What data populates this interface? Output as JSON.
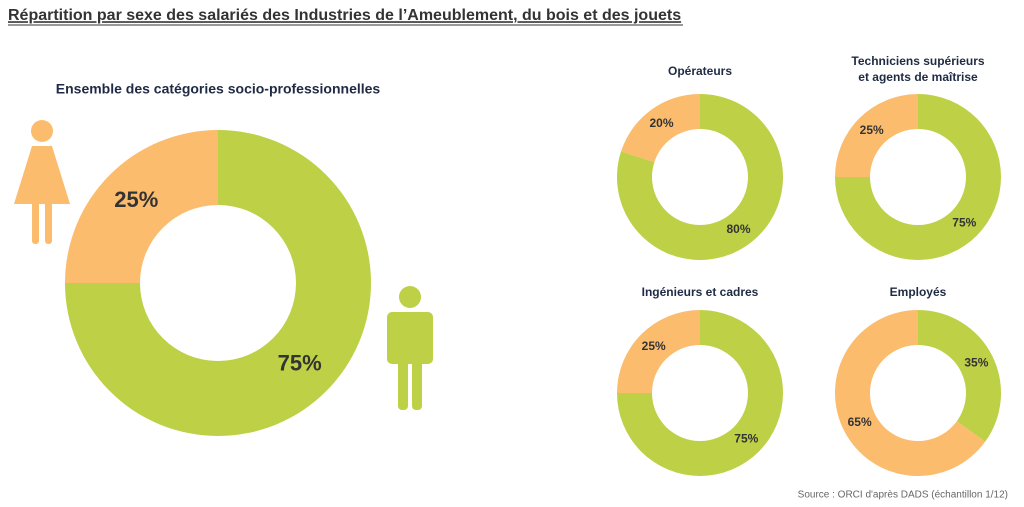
{
  "header": {
    "title": "Répartition par sexe des salariés des Industries de l’Ameublement, du bois et des jouets"
  },
  "chart_data": [
    {
      "type": "donut",
      "title": [
        "Ensemble des catégories socio-professionnelles"
      ],
      "values": [
        75,
        25
      ],
      "value_labels": [
        "75%",
        "25%"
      ],
      "colors": [
        "#bdd046",
        "#fbbc6e"
      ]
    },
    {
      "type": "donut",
      "title": [
        "Opérateurs"
      ],
      "values": [
        80,
        20
      ],
      "value_labels": [
        "80%",
        "20%"
      ],
      "colors": [
        "#bdd046",
        "#fbbc6e"
      ]
    },
    {
      "type": "donut",
      "title": [
        "Techniciens supérieurs",
        "et agents de maîtrise"
      ],
      "values": [
        75,
        25
      ],
      "value_labels": [
        "75%",
        "25%"
      ],
      "colors": [
        "#bdd046",
        "#fbbc6e"
      ]
    },
    {
      "type": "donut",
      "title": [
        "Ingénieurs et cadres"
      ],
      "values": [
        75,
        25
      ],
      "value_labels": [
        "75%",
        "25%"
      ],
      "colors": [
        "#bdd046",
        "#fbbc6e"
      ]
    },
    {
      "type": "donut",
      "title": [
        "Employés"
      ],
      "values": [
        35,
        65
      ],
      "value_labels": [
        "35%",
        "65%"
      ],
      "colors": [
        "#bdd046",
        "#fbbc6e"
      ]
    }
  ],
  "footer": {
    "source": "Source : ORCI d'après DADS (échantillon 1/12)"
  }
}
